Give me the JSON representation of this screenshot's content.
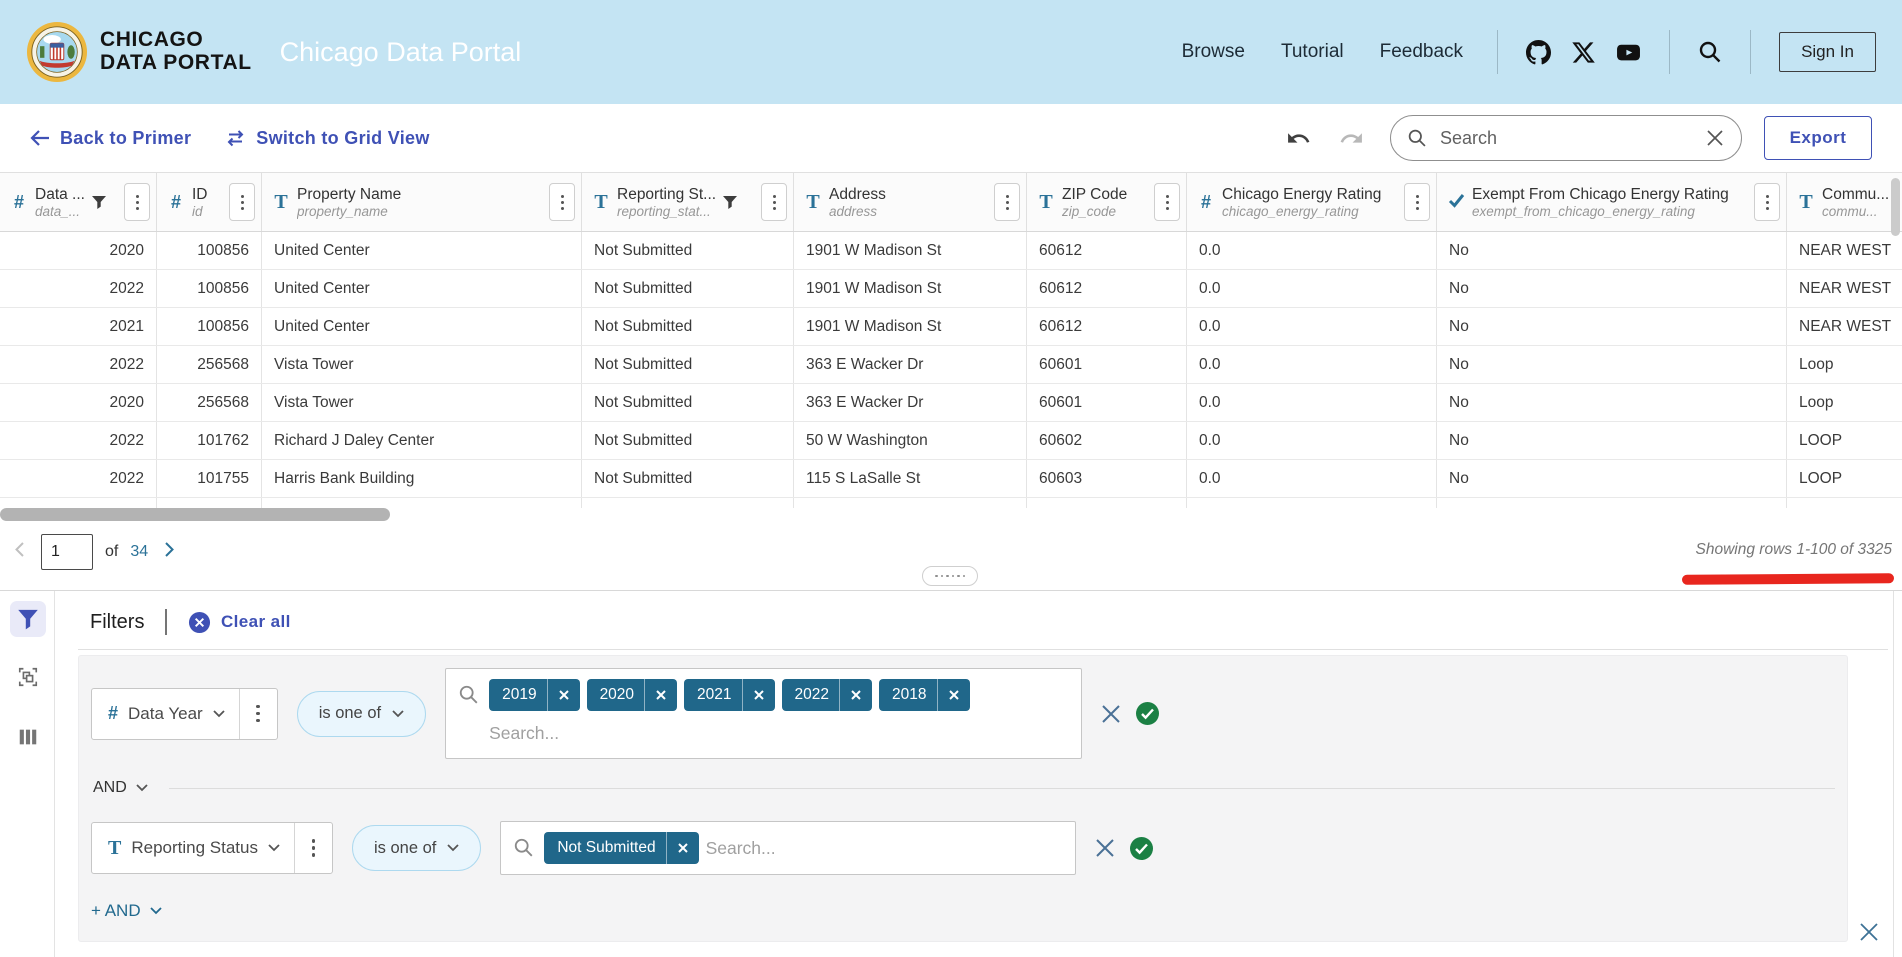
{
  "header": {
    "logo": {
      "line1": "CHICAGO",
      "line2": "DATA PORTAL"
    },
    "title": "Chicago Data Portal",
    "nav": [
      {
        "label": "Browse"
      },
      {
        "label": "Tutorial"
      },
      {
        "label": "Feedback"
      }
    ],
    "sign_in_label": "Sign In"
  },
  "toolbar": {
    "back_label": "Back to Primer",
    "switch_label": "Switch to Grid View",
    "search_placeholder": "Search",
    "export_label": "Export"
  },
  "table": {
    "columns": [
      {
        "icon": "number",
        "label": "Data ...",
        "field": "data_...",
        "filtered": true
      },
      {
        "icon": "number",
        "label": "ID",
        "field": "id",
        "filtered": false
      },
      {
        "icon": "text",
        "label": "Property Name",
        "field": "property_name",
        "filtered": false
      },
      {
        "icon": "text",
        "label": "Reporting St...",
        "field": "reporting_stat...",
        "filtered": true
      },
      {
        "icon": "text",
        "label": "Address",
        "field": "address",
        "filtered": false
      },
      {
        "icon": "text",
        "label": "ZIP Code",
        "field": "zip_code",
        "filtered": false
      },
      {
        "icon": "number",
        "label": "Chicago Energy Rating",
        "field": "chicago_energy_rating",
        "filtered": false
      },
      {
        "icon": "boolean",
        "label": "Exempt From Chicago Energy Rating",
        "field": "exempt_from_chicago_energy_rating",
        "filtered": false
      },
      {
        "icon": "text",
        "label": "Commu...",
        "field": "commu...",
        "filtered": false
      }
    ],
    "rows": [
      [
        "2020",
        "100856",
        "United Center",
        "Not Submitted",
        "1901 W Madison St",
        "60612",
        "0.0",
        "No",
        "NEAR WEST"
      ],
      [
        "2022",
        "100856",
        "United Center",
        "Not Submitted",
        "1901 W Madison St",
        "60612",
        "0.0",
        "No",
        "NEAR WEST"
      ],
      [
        "2021",
        "100856",
        "United Center",
        "Not Submitted",
        "1901 W Madison St",
        "60612",
        "0.0",
        "No",
        "NEAR WEST"
      ],
      [
        "2022",
        "256568",
        "Vista Tower",
        "Not Submitted",
        "363 E Wacker Dr",
        "60601",
        "0.0",
        "No",
        "Loop"
      ],
      [
        "2020",
        "256568",
        "Vista Tower",
        "Not Submitted",
        "363 E Wacker Dr",
        "60601",
        "0.0",
        "No",
        "Loop"
      ],
      [
        "2022",
        "101762",
        "Richard J Daley Center",
        "Not Submitted",
        "50 W Washington",
        "60602",
        "0.0",
        "No",
        "LOOP"
      ],
      [
        "2022",
        "101755",
        "Harris Bank Building",
        "Not Submitted",
        "115 S LaSalle St",
        "60603",
        "0.0",
        "No",
        "LOOP"
      ]
    ]
  },
  "pagination": {
    "page_value": "1",
    "of_label": "of",
    "total_pages": "34",
    "showing_text": "Showing rows 1-100 of 3325"
  },
  "filter_panel": {
    "title": "Filters",
    "clear_all_label": "Clear all",
    "and_label": "AND",
    "add_condition_label": "+ AND",
    "conditions": [
      {
        "column": "Data Year",
        "column_type": "number",
        "operator": "is one of",
        "values": [
          "2019",
          "2020",
          "2021",
          "2022",
          "2018"
        ],
        "search_placeholder": "Search..."
      },
      {
        "column": "Reporting Status",
        "column_type": "text",
        "operator": "is one of",
        "values": [
          "Not Submitted"
        ],
        "search_placeholder": "Search..."
      }
    ]
  },
  "colors": {
    "header_bg": "#c4e4f3",
    "accent_blue": "#3f51b5",
    "type_icon_teal": "#2b7298",
    "chip_bg": "#20678a",
    "check_green": "#1b8044",
    "annotation_red": "#e8261e"
  }
}
